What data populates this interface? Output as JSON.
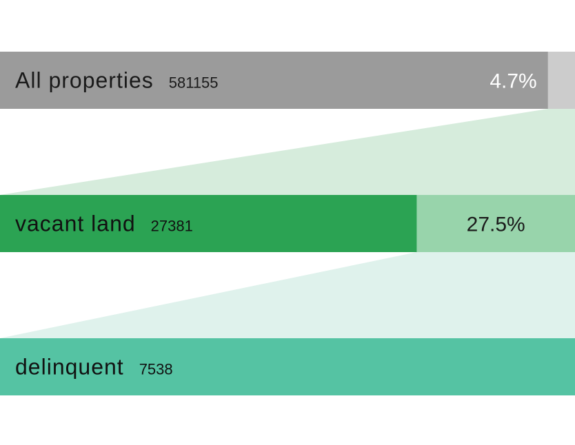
{
  "chart_data": {
    "type": "funnel",
    "title": "",
    "stages": [
      {
        "label": "All properties",
        "count": "581155",
        "value": 581155,
        "share_to_next": "4.7%",
        "color": "#9b9b9b",
        "remainder_color": "#cccccc",
        "label_color": "#1a1a1a",
        "pct_color": "#ffffff"
      },
      {
        "label": "vacant land",
        "count": "27381",
        "value": 27381,
        "share_to_next": "27.5%",
        "color": "#2ba353",
        "remainder_color": "#98d4ab",
        "label_color": "#111111",
        "pct_color": "#1a1a1a"
      },
      {
        "label": "delinquent",
        "count": "7538",
        "value": 7538,
        "share_to_next": "",
        "color": "#55c3a3",
        "remainder_color": "#55c3a3",
        "label_color": "#111111",
        "pct_color": "#1a1a1a"
      }
    ],
    "connector_colors": [
      "#d6ecdc",
      "#dff2ec"
    ]
  }
}
